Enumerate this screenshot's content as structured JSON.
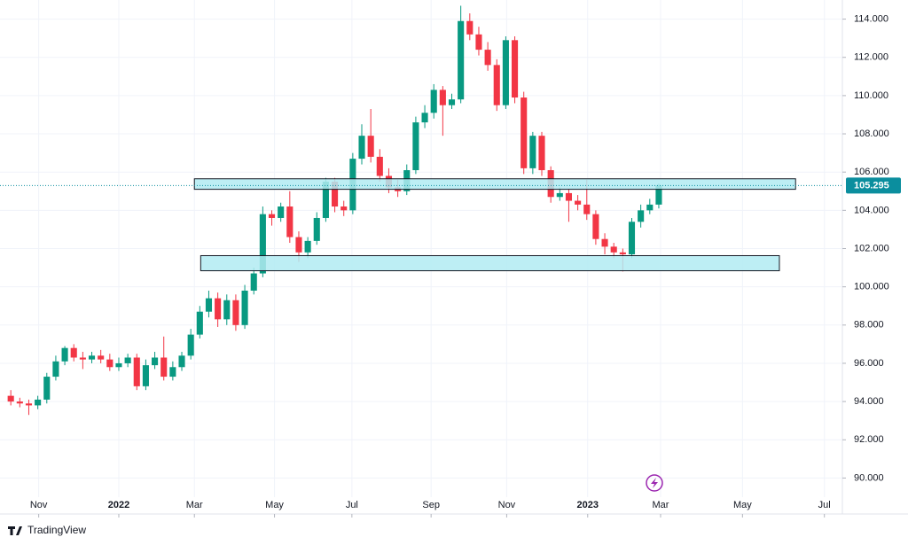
{
  "chart_data": {
    "type": "candlestick",
    "brand": "TradingView",
    "up_color": "#089981",
    "down_color": "#f23645",
    "open": [
      94.3,
      94.0,
      93.9,
      93.8,
      94.1,
      95.3,
      96.1,
      96.8,
      96.3,
      96.2,
      96.4,
      96.2,
      95.8,
      96.0,
      96.3,
      94.8,
      95.9,
      96.3,
      95.3,
      95.8,
      96.4,
      97.5,
      98.7,
      99.4,
      98.3,
      99.3,
      98.0,
      99.8,
      100.7,
      103.8,
      103.6,
      104.2,
      102.6,
      101.8,
      102.4,
      103.6,
      105.5,
      104.2,
      104.0,
      106.7,
      107.9,
      106.8,
      105.8,
      105.2,
      105.0,
      106.1,
      108.6,
      109.1,
      110.3,
      109.5,
      109.8,
      113.9,
      113.2,
      112.4,
      111.6,
      109.5,
      112.9,
      109.9,
      106.2,
      107.9,
      106.1,
      104.7,
      104.9,
      104.5,
      104.3,
      103.8,
      102.5,
      102.1,
      101.8,
      101.7,
      103.4,
      104.0,
      104.3
    ],
    "high": [
      94.6,
      94.2,
      94.1,
      94.3,
      95.5,
      96.4,
      96.9,
      97.0,
      96.6,
      96.6,
      96.7,
      96.5,
      96.3,
      96.5,
      96.5,
      96.2,
      96.6,
      97.4,
      96.1,
      96.6,
      97.8,
      99.0,
      99.8,
      99.7,
      99.6,
      99.6,
      100.1,
      101.0,
      104.2,
      104.0,
      104.4,
      105.0,
      102.9,
      102.6,
      103.9,
      105.7,
      105.7,
      104.5,
      107.0,
      108.5,
      109.3,
      107.2,
      106.2,
      105.6,
      106.4,
      108.9,
      109.5,
      110.6,
      110.5,
      110.1,
      114.7,
      114.3,
      113.6,
      112.8,
      111.9,
      113.1,
      113.1,
      110.2,
      108.1,
      108.1,
      106.3,
      105.2,
      105.1,
      104.8,
      105.6,
      104.0,
      102.8,
      102.3,
      102.0,
      103.6,
      104.3,
      104.6,
      105.4
    ],
    "low": [
      93.8,
      93.7,
      93.3,
      93.6,
      93.9,
      95.1,
      95.9,
      96.1,
      95.7,
      96.0,
      96.0,
      95.6,
      95.6,
      95.8,
      94.6,
      94.6,
      95.7,
      95.1,
      95.1,
      95.6,
      96.2,
      97.3,
      98.4,
      97.9,
      98.0,
      97.7,
      97.8,
      99.6,
      100.5,
      103.2,
      103.4,
      102.3,
      101.3,
      101.5,
      102.2,
      103.4,
      103.9,
      103.7,
      103.8,
      106.4,
      106.5,
      105.5,
      104.9,
      104.7,
      104.8,
      105.9,
      108.3,
      108.8,
      107.9,
      109.3,
      109.6,
      112.9,
      112.1,
      111.3,
      109.2,
      109.3,
      109.6,
      105.9,
      105.9,
      105.8,
      104.4,
      104.5,
      103.4,
      104.0,
      103.5,
      102.2,
      101.7,
      101.5,
      100.8,
      101.5,
      103.1,
      103.8,
      104.1
    ],
    "close": [
      94.0,
      93.9,
      93.8,
      94.1,
      95.3,
      96.1,
      96.8,
      96.3,
      96.2,
      96.4,
      96.2,
      95.8,
      96.0,
      96.3,
      94.8,
      95.9,
      96.3,
      95.3,
      95.8,
      96.4,
      97.5,
      98.7,
      99.4,
      98.3,
      99.3,
      98.0,
      99.8,
      100.7,
      103.8,
      103.6,
      104.2,
      102.6,
      101.8,
      102.4,
      103.6,
      105.5,
      104.2,
      104.0,
      106.7,
      107.9,
      106.8,
      105.8,
      105.2,
      105.0,
      106.1,
      108.6,
      109.1,
      110.3,
      109.5,
      109.8,
      113.9,
      113.2,
      112.4,
      111.6,
      109.5,
      112.9,
      109.9,
      106.2,
      107.9,
      106.1,
      104.7,
      104.9,
      104.5,
      104.3,
      103.8,
      102.5,
      102.1,
      101.8,
      101.7,
      103.4,
      104.0,
      104.3,
      105.295
    ],
    "zones": [
      {
        "xlim": [
          20.4,
          87.2
        ],
        "ylim": [
          105.1,
          105.65
        ]
      },
      {
        "xlim": [
          21.1,
          85.4
        ],
        "ylim": [
          100.84,
          101.63
        ]
      }
    ],
    "zone_color": "#b2ebf2",
    "last_price_color": "#0b8e9e",
    "xlim": [
      -1.2,
      92.4
    ],
    "xticks": [
      {
        "value": 3.1,
        "label": "Nov"
      },
      {
        "value": 12.0,
        "label": "2022"
      },
      {
        "value": 20.4,
        "label": "Mar"
      },
      {
        "value": 29.3,
        "label": "May"
      },
      {
        "value": 37.9,
        "label": "Jul"
      },
      {
        "value": 46.7,
        "label": "Sep"
      },
      {
        "value": 55.1,
        "label": "Nov"
      },
      {
        "value": 64.1,
        "label": "2023"
      },
      {
        "value": 72.2,
        "label": "Mar"
      },
      {
        "value": 81.3,
        "label": "May"
      },
      {
        "value": 90.4,
        "label": "Jul"
      }
    ],
    "ylim": [
      89.0,
      115.0
    ],
    "yticks": [
      {
        "value": 90,
        "label": "90.000"
      },
      {
        "value": 92,
        "label": "92.000"
      },
      {
        "value": 94,
        "label": "94.000"
      },
      {
        "value": 96,
        "label": "96.000"
      },
      {
        "value": 98,
        "label": "98.000"
      },
      {
        "value": 100,
        "label": "100.000"
      },
      {
        "value": 102,
        "label": "102.000"
      },
      {
        "value": 104,
        "label": "104.000"
      },
      {
        "value": 106,
        "label": "106.000"
      },
      {
        "value": 108,
        "label": "108.000"
      },
      {
        "value": 110,
        "label": "110.000"
      },
      {
        "value": 112,
        "label": "112.000"
      },
      {
        "value": 114,
        "label": "114.000"
      }
    ]
  }
}
